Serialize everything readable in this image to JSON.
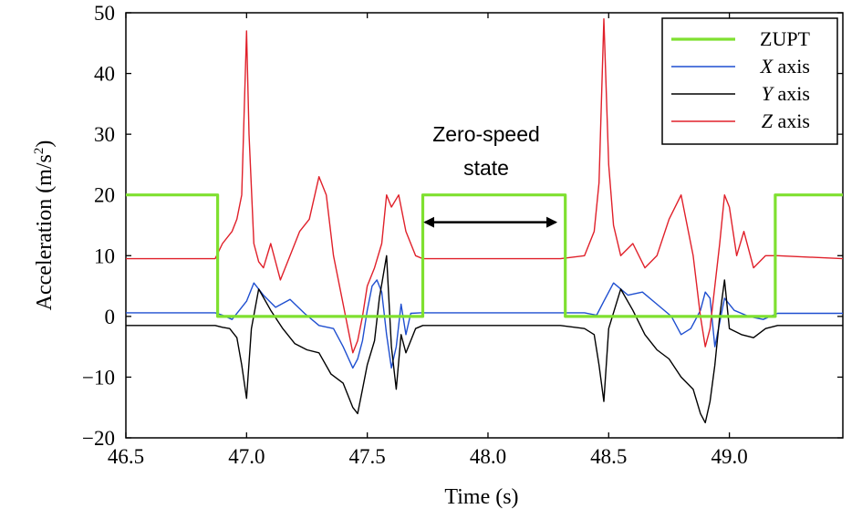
{
  "chart_data": {
    "type": "line",
    "xlabel": "Time (s)",
    "ylabel_main": "Acceleration (m/s",
    "ylabel_sup": "2",
    "ylabel_close": ")",
    "xlim": [
      46.5,
      49.47
    ],
    "ylim": [
      -20,
      50
    ],
    "xticks": [
      46.5,
      47.0,
      47.5,
      48.0,
      48.5,
      49.0
    ],
    "xtick_labels": [
      "46.5",
      "47.0",
      "47.5",
      "48.0",
      "48.5",
      "49.0"
    ],
    "yticks": [
      -20,
      -10,
      0,
      10,
      20,
      30,
      40,
      50
    ],
    "ytick_labels": [
      "−20",
      "−10",
      "0",
      "10",
      "20",
      "30",
      "40",
      "50"
    ],
    "legend_position": "top-right",
    "annotation": {
      "line1": "Zero-speed",
      "line2": "state",
      "arrow_from": 47.74,
      "arrow_to": 48.28,
      "arrow_y": 15.5
    },
    "series": [
      {
        "name": "ZUPT",
        "label": "ZUPT",
        "color": "#7FE030",
        "x": [
          46.5,
          46.88,
          46.88,
          47.73,
          47.73,
          48.32,
          48.32,
          49.19,
          49.19,
          49.47
        ],
        "y": [
          20,
          20,
          0,
          0,
          20,
          20,
          0,
          0,
          20,
          20
        ]
      },
      {
        "name": "X axis",
        "label_var": "X",
        "label_rest": " axis",
        "color": "#1f4fd0",
        "x": [
          46.5,
          46.87,
          46.9,
          46.94,
          46.97,
          47.0,
          47.03,
          47.07,
          47.12,
          47.18,
          47.24,
          47.3,
          47.36,
          47.4,
          47.44,
          47.46,
          47.48,
          47.5,
          47.52,
          47.54,
          47.56,
          47.58,
          47.6,
          47.62,
          47.64,
          47.66,
          47.68,
          47.72,
          48.3,
          48.4,
          48.45,
          48.48,
          48.52,
          48.58,
          48.64,
          48.7,
          48.76,
          48.8,
          48.84,
          48.88,
          48.9,
          48.92,
          48.94,
          48.96,
          48.98,
          49.02,
          49.08,
          49.14,
          49.2,
          49.47
        ],
        "y": [
          0.6,
          0.6,
          0.2,
          -0.5,
          1.0,
          2.5,
          5.5,
          3.5,
          1.5,
          2.8,
          0.5,
          -1.5,
          -2.0,
          -5.0,
          -8.5,
          -7.0,
          -4.0,
          1.0,
          5.0,
          6.0,
          4.0,
          -3.0,
          -8.5,
          -5.0,
          2.0,
          -3.0,
          0.5,
          0.6,
          0.6,
          0.6,
          0.2,
          2.5,
          5.5,
          3.5,
          4.0,
          2.0,
          0.0,
          -3.0,
          -2.0,
          1.0,
          4.0,
          3.0,
          -5.0,
          -1.0,
          3.0,
          1.0,
          0.0,
          -0.5,
          0.5,
          0.5
        ]
      },
      {
        "name": "Y axis",
        "label_var": "Y",
        "label_rest": " axis",
        "color": "#000000",
        "x": [
          46.5,
          46.87,
          46.9,
          46.93,
          46.96,
          46.98,
          47.0,
          47.02,
          47.05,
          47.1,
          47.15,
          47.2,
          47.25,
          47.3,
          47.35,
          47.4,
          47.44,
          47.46,
          47.48,
          47.5,
          47.53,
          47.55,
          47.58,
          47.6,
          47.62,
          47.64,
          47.66,
          47.7,
          47.73,
          48.3,
          48.4,
          48.44,
          48.46,
          48.48,
          48.5,
          48.55,
          48.6,
          48.65,
          48.7,
          48.75,
          48.8,
          48.85,
          48.88,
          48.9,
          48.92,
          48.94,
          48.96,
          48.98,
          49.0,
          49.05,
          49.1,
          49.15,
          49.2,
          49.47
        ],
        "y": [
          -1.5,
          -1.5,
          -1.8,
          -2.0,
          -3.5,
          -8.0,
          -13.5,
          -2.0,
          4.5,
          1.0,
          -2.0,
          -4.5,
          -5.5,
          -6.0,
          -9.5,
          -11.0,
          -15.0,
          -16.0,
          -12.0,
          -8.0,
          -4.0,
          3.0,
          10.0,
          -5.0,
          -12.0,
          -3.0,
          -6.0,
          -2.0,
          -1.5,
          -1.5,
          -2.0,
          -3.0,
          -8.0,
          -14.0,
          -2.0,
          4.5,
          1.0,
          -3.0,
          -5.5,
          -7.0,
          -10.0,
          -12.0,
          -16.0,
          -17.5,
          -14.0,
          -8.0,
          0.0,
          6.0,
          -2.0,
          -3.0,
          -3.5,
          -2.0,
          -1.5,
          -1.5
        ]
      },
      {
        "name": "Z axis",
        "label_var": "Z",
        "label_rest": " axis",
        "color": "#e0202a",
        "x": [
          46.5,
          46.87,
          46.9,
          46.94,
          46.96,
          46.98,
          47.0,
          47.01,
          47.03,
          47.05,
          47.07,
          47.1,
          47.14,
          47.18,
          47.22,
          47.26,
          47.3,
          47.33,
          47.36,
          47.4,
          47.44,
          47.46,
          47.48,
          47.5,
          47.53,
          47.56,
          47.58,
          47.6,
          47.63,
          47.66,
          47.7,
          47.73,
          48.3,
          48.4,
          48.44,
          48.46,
          48.48,
          48.5,
          48.52,
          48.55,
          48.6,
          48.65,
          48.7,
          48.75,
          48.8,
          48.85,
          48.88,
          48.9,
          48.92,
          48.94,
          48.96,
          48.98,
          49.0,
          49.03,
          49.06,
          49.1,
          49.15,
          49.2,
          49.47
        ],
        "y": [
          9.5,
          9.5,
          12.0,
          14.0,
          16.0,
          20.0,
          47.0,
          30.0,
          12.0,
          9.0,
          8.0,
          12.0,
          6.0,
          10.0,
          14.0,
          16.0,
          23.0,
          20.0,
          10.0,
          2.0,
          -6.0,
          -4.0,
          0.0,
          5.0,
          8.0,
          12.0,
          20.0,
          18.0,
          20.0,
          14.0,
          10.0,
          9.5,
          9.5,
          10.0,
          14.0,
          22.0,
          49.0,
          25.0,
          15.0,
          10.0,
          12.0,
          8.0,
          10.0,
          16.0,
          20.0,
          10.0,
          0.0,
          -5.0,
          -2.0,
          5.0,
          12.0,
          20.0,
          18.0,
          10.0,
          14.0,
          8.0,
          10.0,
          10.0,
          9.5
        ]
      }
    ]
  }
}
